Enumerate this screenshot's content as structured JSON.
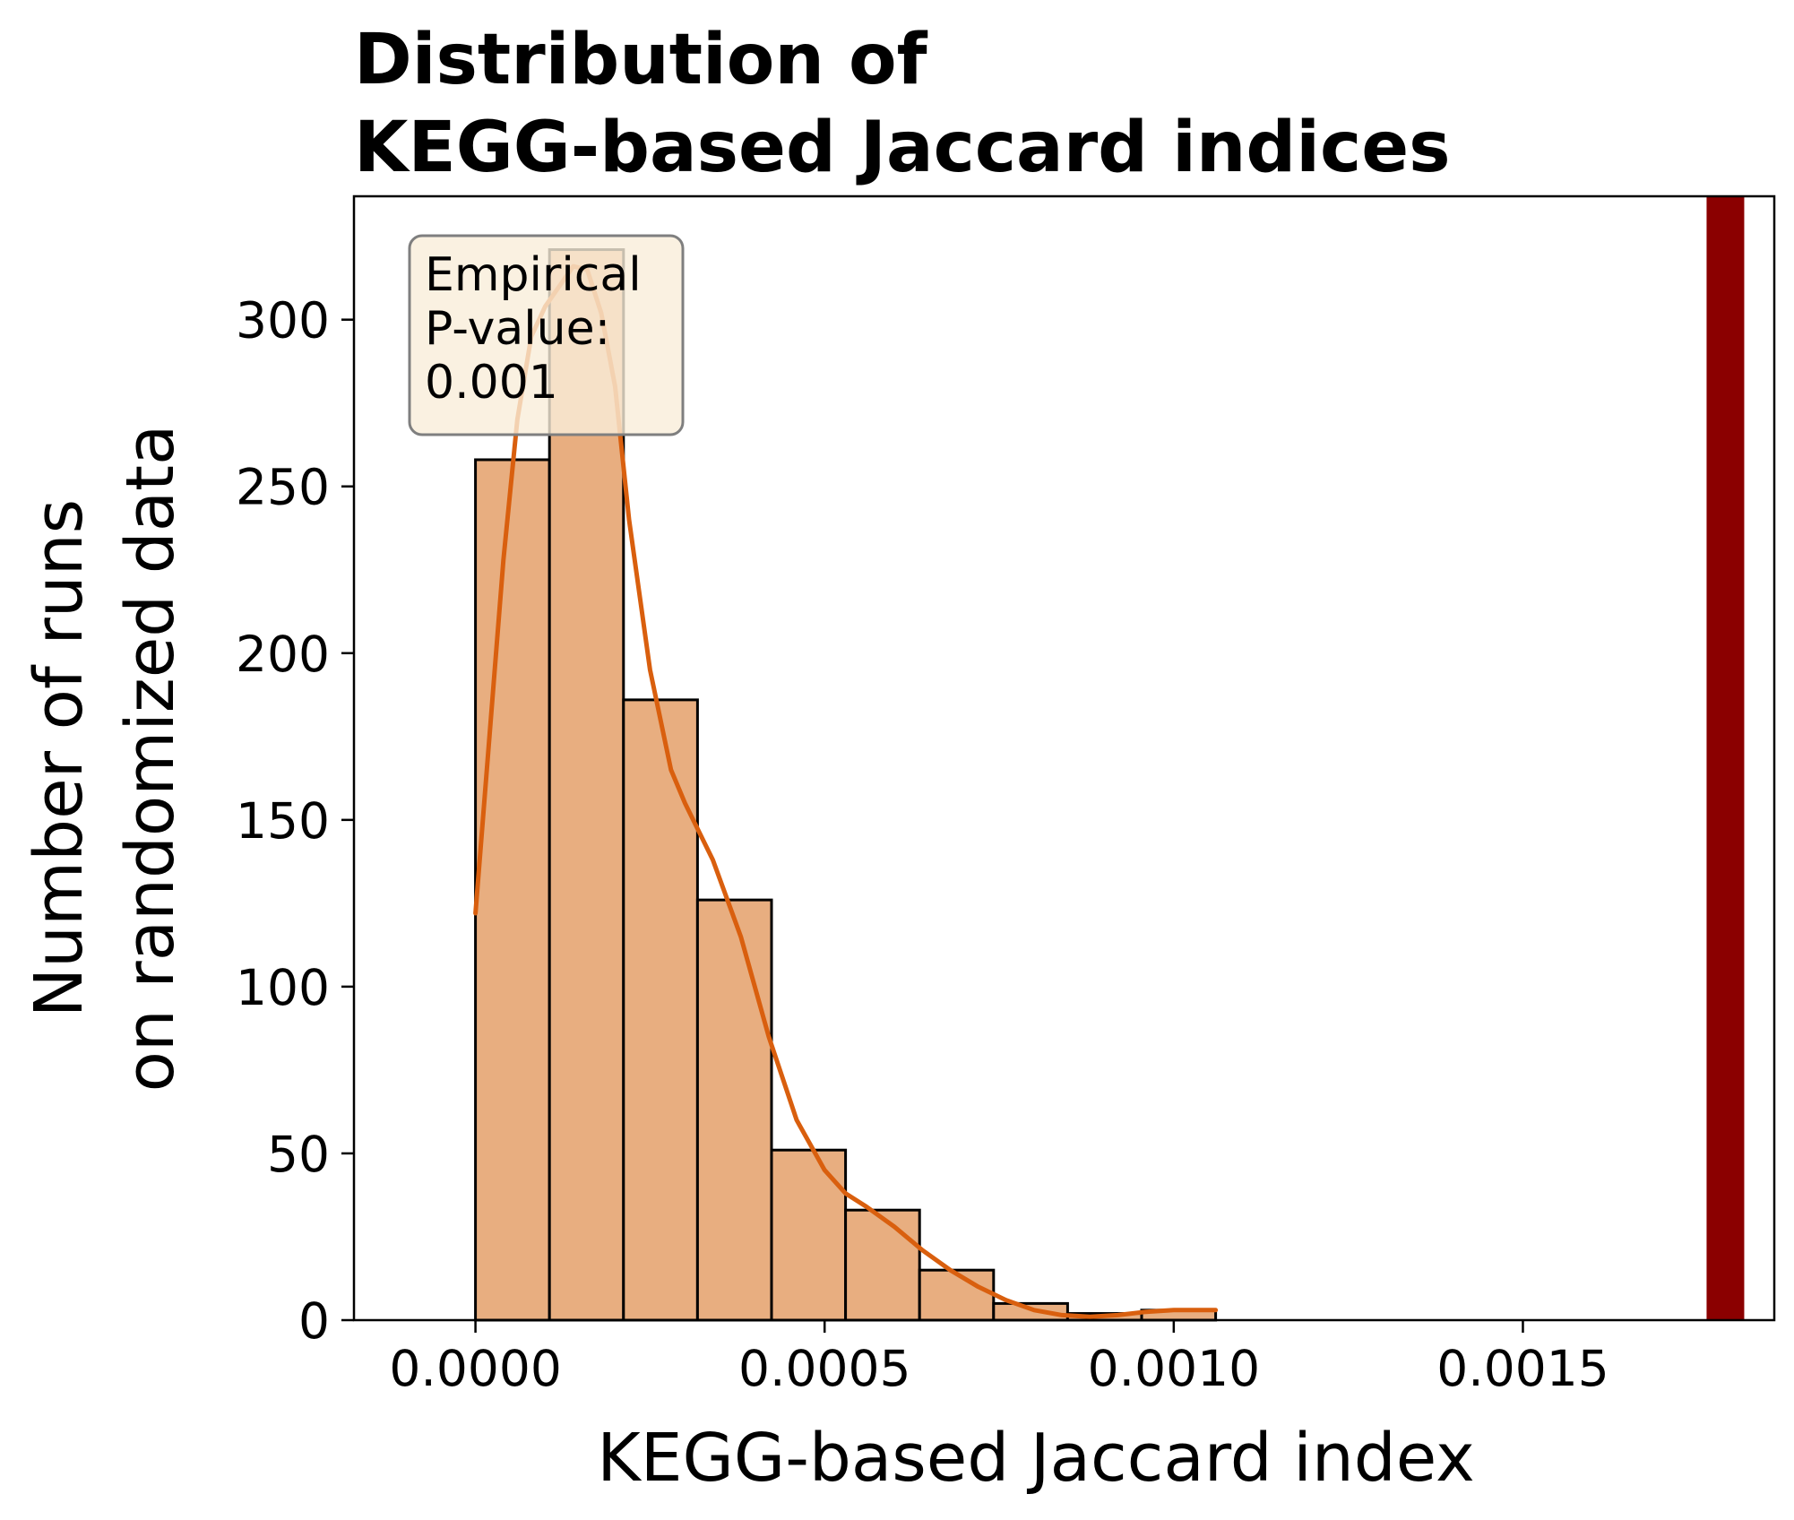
{
  "chart_data": {
    "type": "bar",
    "title_lines": [
      "Distribution of",
      "KEGG-based Jaccard indices"
    ],
    "xlabel": "KEGG-based Jaccard index",
    "ylabel_lines": [
      "Number of runs",
      "on randomized data"
    ],
    "xlim": [
      -0.000174,
      0.00186
    ],
    "ylim": [
      0,
      337
    ],
    "xticks": [
      0,
      0.0005,
      0.001,
      0.0015
    ],
    "xtick_labels": [
      "0.0000",
      "0.0005",
      "0.0010",
      "0.0015"
    ],
    "yticks": [
      0,
      50,
      100,
      150,
      200,
      250,
      300
    ],
    "ytick_labels": [
      "0",
      "50",
      "100",
      "150",
      "200",
      "250",
      "300"
    ],
    "bins": [
      {
        "x0": 0.0,
        "x1": 0.000106,
        "count": 258
      },
      {
        "x0": 0.000106,
        "x1": 0.000212,
        "count": 321
      },
      {
        "x0": 0.000212,
        "x1": 0.000318,
        "count": 186
      },
      {
        "x0": 0.000318,
        "x1": 0.000424,
        "count": 126
      },
      {
        "x0": 0.000424,
        "x1": 0.00053,
        "count": 51
      },
      {
        "x0": 0.00053,
        "x1": 0.000636,
        "count": 33
      },
      {
        "x0": 0.000636,
        "x1": 0.000742,
        "count": 15
      },
      {
        "x0": 0.000742,
        "x1": 0.000848,
        "count": 5
      },
      {
        "x0": 0.000848,
        "x1": 0.000954,
        "count": 2
      },
      {
        "x0": 0.000954,
        "x1": 0.00106,
        "count": 3
      }
    ],
    "kde": {
      "x": [
        0,
        2e-05,
        4e-05,
        6e-05,
        8e-05,
        0.0001,
        0.00012,
        0.00014,
        0.00016,
        0.00018,
        0.0002,
        0.00022,
        0.00025,
        0.00028,
        0.0003,
        0.00034,
        0.00038,
        0.00042,
        0.00046,
        0.0005,
        0.00053,
        0.00056,
        0.0006,
        0.00064,
        0.00068,
        0.00072,
        0.00076,
        0.0008,
        0.00084,
        0.00088,
        0.00092,
        0.00096,
        0.001,
        0.00106
      ],
      "y": [
        122,
        175,
        228,
        270,
        295,
        304,
        310,
        316,
        315,
        302,
        280,
        240,
        195,
        165,
        155,
        138,
        115,
        85,
        60,
        45,
        38,
        34,
        28,
        21,
        15,
        10,
        6,
        3,
        1.5,
        1,
        1.5,
        2.5,
        3,
        3
      ]
    },
    "observed_value": 0.00179,
    "annotation_lines": [
      "Empirical",
      "P-value:",
      "0.001"
    ],
    "colors": {
      "bar_fill": "#e8ae80",
      "kde_line": "#d95f0e",
      "observed_line": "#8b0000",
      "annotation_fill": "#f9eed9",
      "annotation_edge": "#7f7f7f"
    }
  }
}
